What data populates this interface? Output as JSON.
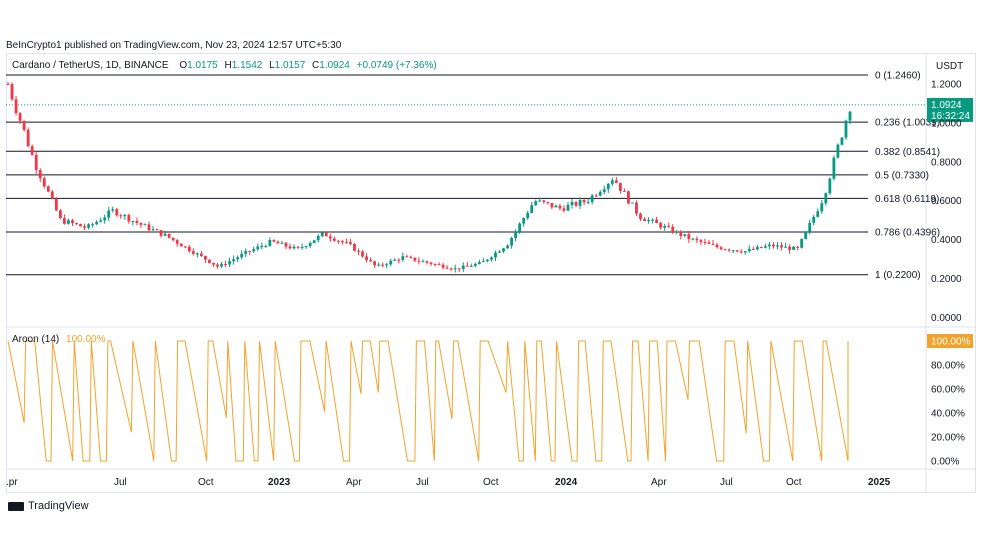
{
  "header": {
    "publisher": "BeInCrypto1 published on TradingView.com, Nov 23, 2024 12:57 UTC+5:30"
  },
  "legend": {
    "symbol": "Cardano / TetherUS, 1D, BINANCE",
    "o_label": "O",
    "o_value": "1.0175",
    "h_label": "H",
    "h_value": "1.1542",
    "l_label": "L",
    "l_value": "1.0157",
    "c_label": "C",
    "c_value": "1.0924",
    "change": "+0.0749 (+7.36%)"
  },
  "price_axis": {
    "currency": "USDT",
    "ticks": [
      "1.2000",
      "1.0000",
      "0.8000",
      "0.6000",
      "0.4000",
      "0.2000",
      "0.0000"
    ],
    "tick_values": [
      1.2,
      1.0,
      0.8,
      0.6,
      0.4,
      0.2,
      0.0
    ],
    "last_price": "1.0924",
    "countdown": "16:32:24"
  },
  "fib_levels": [
    {
      "label": "0 (1.2460)",
      "value": 1.246
    },
    {
      "label": "0.236 (1.0039)",
      "value": 1.0039
    },
    {
      "label": "0.382 (0.8541)",
      "value": 0.8541
    },
    {
      "label": "0.5 (0.7330)",
      "value": 0.733
    },
    {
      "label": "0.618 (0.6119)",
      "value": 0.6119
    },
    {
      "label": "0.786 (0.4396)",
      "value": 0.4396
    },
    {
      "label": "1 (0.2200)",
      "value": 0.22
    }
  ],
  "aroon": {
    "label": "Aroon (14)",
    "value": "100.00%",
    "badge": "100.00%",
    "ticks": [
      "80.00%",
      "60.00%",
      "40.00%",
      "20.00%",
      "0.00%"
    ],
    "tick_values": [
      80,
      60,
      40,
      20,
      0
    ]
  },
  "time_axis": {
    "labels": [
      ".pr",
      "Jul",
      "Oct",
      "2023",
      "Apr",
      "Jul",
      "Oct",
      "2024",
      "Apr",
      "Jul",
      "Oct",
      "2025"
    ],
    "bold": [
      false,
      false,
      false,
      true,
      false,
      false,
      false,
      true,
      false,
      false,
      false,
      true
    ]
  },
  "footer": {
    "brand": "TradingView"
  },
  "colors": {
    "up": "#089981",
    "down": "#f23645",
    "aroon": "#f2a32b",
    "fib_line": "#131722",
    "last_price_line": "#089981"
  },
  "chart_data": {
    "type": "candlestick",
    "title": "Cardano / TetherUS, 1D, BINANCE",
    "ylim": [
      0,
      1.3
    ],
    "x_start": "2022-04",
    "x_end": "2024-11-23",
    "close_series": {
      "dates": [
        "2022-04-01",
        "2022-05-01",
        "2022-06-01",
        "2022-07-01",
        "2022-08-01",
        "2022-09-01",
        "2022-10-01",
        "2022-11-01",
        "2022-12-01",
        "2023-01-01",
        "2023-02-01",
        "2023-03-01",
        "2023-04-01",
        "2023-05-01",
        "2023-06-01",
        "2023-07-01",
        "2023-08-01",
        "2023-09-01",
        "2023-10-01",
        "2023-11-01",
        "2023-12-01",
        "2024-01-01",
        "2024-02-01",
        "2024-03-01",
        "2024-04-01",
        "2024-05-01",
        "2024-06-01",
        "2024-07-01",
        "2024-08-01",
        "2024-09-01",
        "2024-10-01",
        "2024-11-01",
        "2024-11-23"
      ],
      "values": [
        1.2,
        0.8,
        0.5,
        0.46,
        0.55,
        0.48,
        0.42,
        0.34,
        0.26,
        0.33,
        0.39,
        0.35,
        0.43,
        0.37,
        0.26,
        0.31,
        0.28,
        0.25,
        0.28,
        0.38,
        0.6,
        0.56,
        0.6,
        0.72,
        0.52,
        0.46,
        0.4,
        0.36,
        0.34,
        0.37,
        0.35,
        0.62,
        1.09
      ]
    },
    "aroon_period": 14
  }
}
